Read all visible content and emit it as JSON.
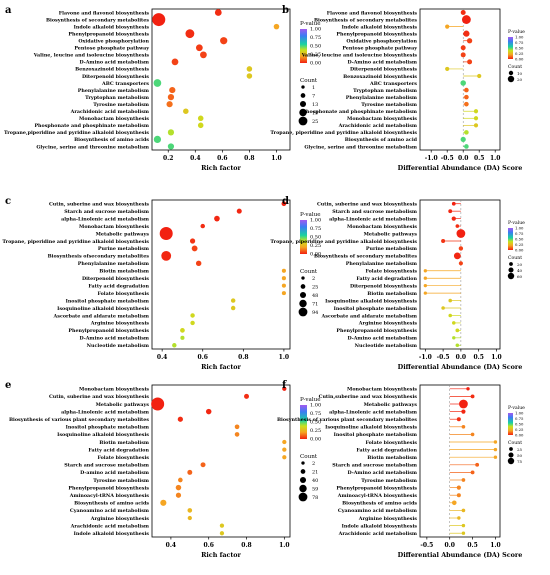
{
  "figure": {
    "chart_data": [
      {
        "panel": "a",
        "type": "scatter",
        "xlabel": "Rich factor",
        "xlim": [
          0.08,
          1.1
        ],
        "xticks": [
          0.2,
          0.4,
          0.6,
          0.8,
          1.0
        ],
        "color_legend": {
          "title": "P-value",
          "ticks": [
            "1.00",
            "0.75",
            "0.50",
            "0.25",
            "0.00"
          ]
        },
        "size_legend": {
          "title": "Count",
          "labels": [
            "1",
            "7",
            "13",
            "19",
            "25"
          ]
        },
        "categories": [
          "Flavone and flavonol biosynthesis",
          "Biosynthesis of secondary metabolites",
          "Indole alkaloid biosynthesis",
          "Phenylpropanoid biosynthesis",
          "Oxidative phosphorylation",
          "Pentose phosphate pathway",
          "Valine, leucine and isoleucine biosynthesis",
          "D-Amino acid metabolism",
          "Benzoxazinoid biosynthesis",
          "Diterpenoid biosynthesis",
          "ABC transporters",
          "Phenylalanine metabolism",
          "Tryptophan metabolism",
          "Tyrosine metabolism",
          "Arachidonic acid metabolism",
          "Monobactam biosynthesis",
          "Phosphonate and phosphinate metabolism",
          "Tropane,piperidine and pyridine alkaloid biosynthesis",
          "Biosynthesis of amino acids",
          "Glycine, serine and threonine metabolism"
        ],
        "rich_factor": [
          0.57,
          0.13,
          1.0,
          0.36,
          0.61,
          0.43,
          0.46,
          0.25,
          0.8,
          0.8,
          0.12,
          0.23,
          0.22,
          0.21,
          0.33,
          0.44,
          0.44,
          0.22,
          0.12,
          0.22
        ],
        "p_value": [
          0.02,
          0.001,
          0.2,
          0.02,
          0.05,
          0.04,
          0.05,
          0.05,
          0.3,
          0.3,
          0.5,
          0.1,
          0.1,
          0.12,
          0.3,
          0.35,
          0.35,
          0.4,
          0.5,
          0.5
        ],
        "count": [
          4,
          25,
          2,
          9,
          5,
          4,
          4,
          4,
          2,
          2,
          6,
          3,
          3,
          3,
          2,
          2,
          2,
          3,
          5,
          3
        ]
      },
      {
        "panel": "b",
        "type": "scatter",
        "xlabel": "Differential Abundance (DA) Score",
        "xlim": [
          -1.35,
          1.15
        ],
        "xticks": [
          -1.0,
          -0.5,
          0.0,
          0.5,
          1.0
        ],
        "color_legend": {
          "title": "P-value",
          "ticks": [
            "1.00",
            "0.75",
            "0.50",
            "0.25",
            "0.00"
          ]
        },
        "size_legend": {
          "title": "Count",
          "labels": [
            "10",
            "20"
          ]
        },
        "categories": [
          "Flavone and flavonol biosynthesis",
          "Biosynthesis of secondary metabolites",
          "Indole alkaloid biosynthesis",
          "Phenylpropanoid biosynthesis",
          "Oxidative phosphorylation",
          "Pentose phosphate pathway",
          "Valine, leucine and isoleucine biosynthesis",
          "D-Amino acid metabolism",
          "Diterpenoid biosynthesis",
          "Benzoxazinoid biosynthesis",
          "ABC transporters",
          "Tryptophan metabolism",
          "Phenylalanine metabolism",
          "Tyrosine metabolism",
          "Phosphonate and phosphinate metabolism",
          "Monobactam biosynthesis",
          "Arachidonic acid metabolism",
          "Tropane, piperidine and pyridine alkaloid biosynthesis",
          "Biosynthesis of amino acid",
          "Glycine, serine and threonine metabolism"
        ],
        "da_score": [
          0.0,
          0.1,
          -0.5,
          0.1,
          0.2,
          0.0,
          0.0,
          0.2,
          -0.5,
          0.5,
          0.0,
          0.1,
          0.1,
          0.1,
          0.4,
          0.4,
          0.4,
          0.1,
          0.0,
          0.1
        ],
        "p_value": [
          0.02,
          0.001,
          0.2,
          0.02,
          0.05,
          0.04,
          0.05,
          0.05,
          0.3,
          0.3,
          0.5,
          0.1,
          0.1,
          0.12,
          0.35,
          0.35,
          0.3,
          0.4,
          0.5,
          0.5
        ],
        "count": [
          4,
          25,
          2,
          9,
          5,
          4,
          4,
          4,
          2,
          2,
          6,
          3,
          3,
          3,
          2,
          2,
          2,
          3,
          5,
          3
        ]
      },
      {
        "panel": "c",
        "type": "scatter",
        "xlabel": "Rich factor",
        "xlim": [
          0.35,
          1.03
        ],
        "xticks": [
          0.4,
          0.6,
          0.8,
          1.0
        ],
        "color_legend": {
          "title": "P-value",
          "ticks": [
            "1.00",
            "0.75",
            "0.50",
            "0.25",
            "0.00"
          ]
        },
        "size_legend": {
          "title": "Count",
          "labels": [
            "2",
            "25",
            "48",
            "71",
            "94"
          ]
        },
        "categories": [
          "Cutin, suberine and wax biosynthesis",
          "Starch and sucrose metabolism",
          "alpha-Linolenic acid metabolism",
          "Monobactam biosynthesis",
          "Metabolic pathways",
          "Tropane, piperidine and pyridine alkaloid biosynthesis",
          "Purine metabolism",
          "Biosynthesis ofsecondary metabolites",
          "Phenylalanine metabolism",
          "Biotin metabolism",
          "Diterpenoid biosynthesis",
          "Fatty acid degradation",
          "Folate biosynthesis",
          "Inositol phosphate metabolism",
          "Isoquinoline alkaloid biosynthesis",
          "Ascorbate and aldarate metabolism",
          "Arginine biosynthesis",
          "Phenylpropanoid biosynthesis",
          "D-Amino acid metabolism",
          "Nucleotide metabolism"
        ],
        "rich_factor": [
          1.0,
          0.78,
          0.67,
          0.6,
          0.42,
          0.55,
          0.56,
          0.42,
          0.58,
          1.0,
          1.0,
          1.0,
          1.0,
          0.75,
          0.75,
          0.55,
          0.55,
          0.5,
          0.5,
          0.46
        ],
        "p_value": [
          0.001,
          0.01,
          0.01,
          0.02,
          0.001,
          0.03,
          0.05,
          0.01,
          0.05,
          0.2,
          0.2,
          0.2,
          0.2,
          0.3,
          0.3,
          0.35,
          0.35,
          0.35,
          0.4,
          0.4
        ],
        "count": [
          4,
          5,
          8,
          3,
          94,
          6,
          9,
          45,
          7,
          2,
          2,
          2,
          2,
          3,
          3,
          3,
          3,
          4,
          2,
          3
        ]
      },
      {
        "panel": "d",
        "type": "scatter",
        "xlabel": "Differential Abundance (DA) Score",
        "xlim": [
          -1.15,
          1.1
        ],
        "xticks": [
          -1.0,
          -0.5,
          0.0,
          0.5,
          1.0
        ],
        "color_legend": {
          "title": "P-value",
          "ticks": [
            "1.00",
            "0.75",
            "0.50",
            "0.25",
            "0.00"
          ]
        },
        "size_legend": {
          "title": "Count",
          "labels": [
            "20",
            "40",
            "60"
          ]
        },
        "categories": [
          "Cutin, suberine and wax biosynthesis",
          "Starch and sucrose metabolism",
          "alpha-Linolenic acid metabolism",
          "Monobactam biosynthesis",
          "Metabolic pathways",
          "Tropane, piperidine and pyridine alkaloid biosynthesis",
          "Purine metabolism",
          "Biosynthesis of secondary metabolites",
          "Phenylalanine metabolism",
          "Folate biosynthesis",
          "Fatty acid degradation",
          "Diterpenoid biosynthesis",
          "Biotin metabolism",
          "Isoquinoline alkaloid biosynthesis",
          "Inositol phosphate metabolism",
          "Ascorbate and aldarate metabolism",
          "Arginine biosynthesis",
          "Phenylpropanoid biosynthesis",
          "D-Amino acid metabolism",
          "Nucleotide metabolism"
        ],
        "da_score": [
          -0.2,
          -0.3,
          -0.2,
          -0.1,
          0.0,
          -0.5,
          0.0,
          -0.1,
          0.0,
          -1.0,
          -1.0,
          -1.0,
          -1.0,
          -0.3,
          -0.5,
          -0.3,
          -0.2,
          -0.1,
          -0.2,
          -0.1
        ],
        "p_value": [
          0.001,
          0.01,
          0.01,
          0.02,
          0.001,
          0.03,
          0.05,
          0.01,
          0.05,
          0.2,
          0.2,
          0.2,
          0.2,
          0.3,
          0.3,
          0.35,
          0.35,
          0.35,
          0.4,
          0.4
        ],
        "count": [
          4,
          5,
          8,
          3,
          94,
          6,
          9,
          45,
          7,
          2,
          2,
          2,
          2,
          3,
          3,
          3,
          3,
          4,
          2,
          3
        ]
      },
      {
        "panel": "e",
        "type": "scatter",
        "xlabel": "Rich factor",
        "xlim": [
          0.3,
          1.03
        ],
        "xticks": [
          0.4,
          0.6,
          0.8,
          1.0
        ],
        "color_legend": {
          "title": "P-value",
          "ticks": [
            "1.00",
            "0.75",
            "0.50",
            "0.25",
            "0.00"
          ]
        },
        "size_legend": {
          "title": "Count",
          "labels": [
            "2",
            "21",
            "40",
            "59",
            "78"
          ]
        },
        "categories": [
          "Monobactam biosynthesis",
          "Cutin, suberine and wax biosynthesis",
          "Metabolic pathways",
          "alpha-Linolenic acid metabolism",
          "Biosynthesis of various plant secondary metabolites",
          "Inositol phosphate metabolism",
          "Isoquinoline alkaloid biosynthesis",
          "Biotin metabolism",
          "Fatty acid degradation",
          "Folate biosynthesis",
          "Starch and sucrose metabolism",
          "D-amino acid metabolism",
          "Tyrosine metabolism",
          "Phenylpropanoid biosynthesis",
          "Aminoacyl-tRNA biosynthesis",
          "Biosynthesis of amino acids",
          "Cyanoamino acid metabolism",
          "Arginine biosynthesis",
          "Arachidonic acid metabolism",
          "Indole alkaloid biosynthesis"
        ],
        "rich_factor": [
          1.0,
          0.8,
          0.33,
          0.6,
          0.45,
          0.75,
          0.75,
          1.0,
          1.0,
          1.0,
          0.57,
          0.5,
          0.45,
          0.44,
          0.44,
          0.36,
          0.5,
          0.5,
          0.67,
          0.67
        ],
        "p_value": [
          0.001,
          0.02,
          0.001,
          0.01,
          0.02,
          0.15,
          0.15,
          0.2,
          0.2,
          0.2,
          0.1,
          0.1,
          0.15,
          0.15,
          0.15,
          0.2,
          0.25,
          0.25,
          0.3,
          0.3
        ],
        "count": [
          2,
          4,
          78,
          6,
          5,
          3,
          3,
          2,
          2,
          2,
          4,
          4,
          3,
          6,
          5,
          9,
          3,
          2,
          2,
          2
        ]
      },
      {
        "panel": "f",
        "type": "scatter",
        "xlabel": "Differential Abundance (DA) Score",
        "xlim": [
          -0.65,
          1.1
        ],
        "xticks": [
          -0.5,
          0.0,
          0.5,
          1.0
        ],
        "color_legend": {
          "title": "P-value",
          "ticks": [
            "1.00",
            "0.75",
            "0.50",
            "0.25",
            "0.00"
          ]
        },
        "size_legend": {
          "title": "Count",
          "labels": [
            "25",
            "50",
            "75"
          ]
        },
        "categories": [
          "Monobactam biosynthesis",
          "Cutin,suberine and wax biosynthesis",
          "Metabolic pathways",
          "alpha-Linolenic acid metabolism",
          "Biosynthesis of various plant secondary metabolites",
          "Isoquinoline alkaloid biosynthesis",
          "Inositol phosphate metabolism",
          "Folate biosynthesis",
          "Fatty acid degradation",
          "Biotin metabolism",
          "Starch and sucrose metabolism",
          "D-Amino acid metabolism",
          "Tyrosine metabolism",
          "Phenylpropanoid biosynthesis",
          "Aminoacyl-tRNA biosynthesis",
          "Biosynthesis of amino acids",
          "Cyanoamino acid metabolism",
          "Arginine biosynthesis",
          "Indole alkaloid biosynthesis",
          "Arachidonic acid metabolism"
        ],
        "da_score": [
          0.4,
          0.5,
          0.3,
          0.3,
          0.2,
          0.3,
          0.5,
          1.0,
          1.0,
          1.0,
          0.6,
          0.5,
          0.3,
          0.2,
          0.2,
          0.1,
          0.3,
          0.2,
          0.3,
          0.3
        ],
        "p_value": [
          0.001,
          0.02,
          0.001,
          0.01,
          0.02,
          0.15,
          0.15,
          0.2,
          0.2,
          0.2,
          0.1,
          0.1,
          0.15,
          0.15,
          0.15,
          0.2,
          0.25,
          0.25,
          0.3,
          0.3
        ],
        "count": [
          2,
          4,
          78,
          6,
          5,
          3,
          3,
          2,
          2,
          2,
          4,
          4,
          3,
          6,
          5,
          9,
          3,
          2,
          2,
          2
        ]
      }
    ]
  }
}
